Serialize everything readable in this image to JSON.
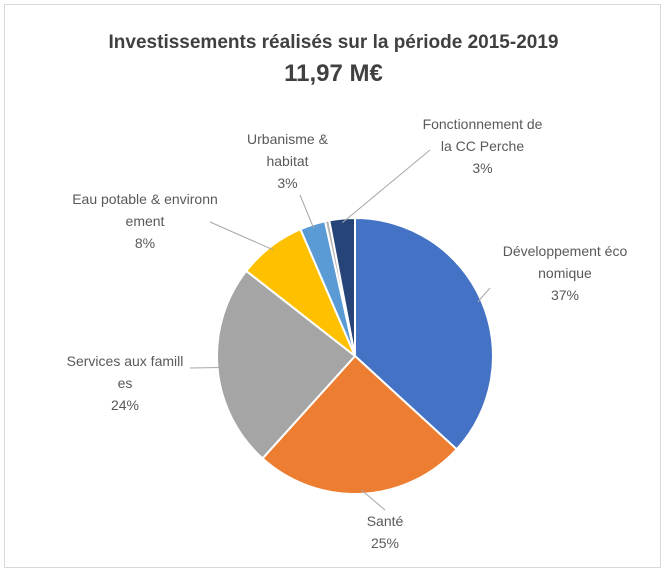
{
  "chart_data": {
    "type": "pie",
    "title": "Investissements réalisés sur la période 2015-2019",
    "subtitle": "11,97 M€",
    "categories": [
      "Développement économique",
      "Santé",
      "Services aux familles",
      "Eau potable & environnement",
      "Urbanisme & habitat",
      null,
      "Fonctionnement de la CC Perche"
    ],
    "values": [
      37,
      25,
      24,
      8,
      3,
      0.5,
      3
    ],
    "value_labels": [
      "37%",
      "25%",
      "24%",
      "8%",
      "3%",
      null,
      "3%"
    ],
    "colors": [
      "#4472c4",
      "#ed7d31",
      "#a5a5a5",
      "#ffc000",
      "#5b9bd5",
      "#b4b4b4",
      "#264478"
    ]
  }
}
